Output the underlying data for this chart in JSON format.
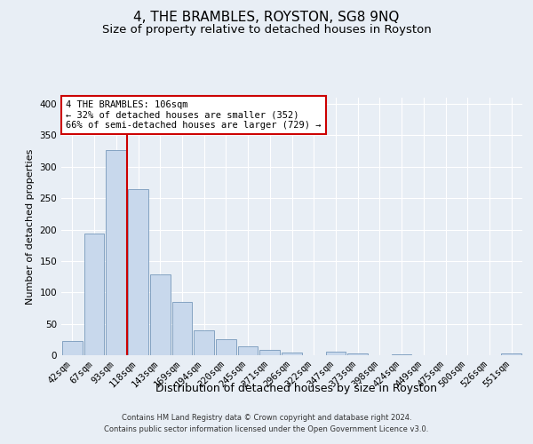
{
  "title": "4, THE BRAMBLES, ROYSTON, SG8 9NQ",
  "subtitle": "Size of property relative to detached houses in Royston",
  "xlabel": "Distribution of detached houses by size in Royston",
  "ylabel": "Number of detached properties",
  "footer_line1": "Contains HM Land Registry data © Crown copyright and database right 2024.",
  "footer_line2": "Contains public sector information licensed under the Open Government Licence v3.0.",
  "bar_labels": [
    "42sqm",
    "67sqm",
    "93sqm",
    "118sqm",
    "143sqm",
    "169sqm",
    "194sqm",
    "220sqm",
    "245sqm",
    "271sqm",
    "296sqm",
    "322sqm",
    "347sqm",
    "373sqm",
    "398sqm",
    "424sqm",
    "449sqm",
    "475sqm",
    "500sqm",
    "526sqm",
    "551sqm"
  ],
  "bar_values": [
    23,
    193,
    327,
    265,
    128,
    85,
    39,
    26,
    14,
    8,
    4,
    0,
    5,
    3,
    0,
    2,
    0,
    0,
    0,
    0,
    3
  ],
  "bar_color": "#c8d8ec",
  "bar_edge_color": "#7799bb",
  "vline_color": "#cc0000",
  "vline_pos": 2.5,
  "annotation_text": "4 THE BRAMBLES: 106sqm\n← 32% of detached houses are smaller (352)\n66% of semi-detached houses are larger (729) →",
  "annotation_box_color": "#ffffff",
  "annotation_box_edge": "#cc0000",
  "ylim": [
    0,
    410
  ],
  "yticks": [
    0,
    50,
    100,
    150,
    200,
    250,
    300,
    350,
    400
  ],
  "background_color": "#e8eef5",
  "grid_color": "#ffffff",
  "title_fontsize": 11,
  "subtitle_fontsize": 9.5,
  "tick_fontsize": 7.5,
  "ylabel_fontsize": 8,
  "xlabel_fontsize": 9,
  "footer_fontsize": 6,
  "annotation_fontsize": 7.5
}
